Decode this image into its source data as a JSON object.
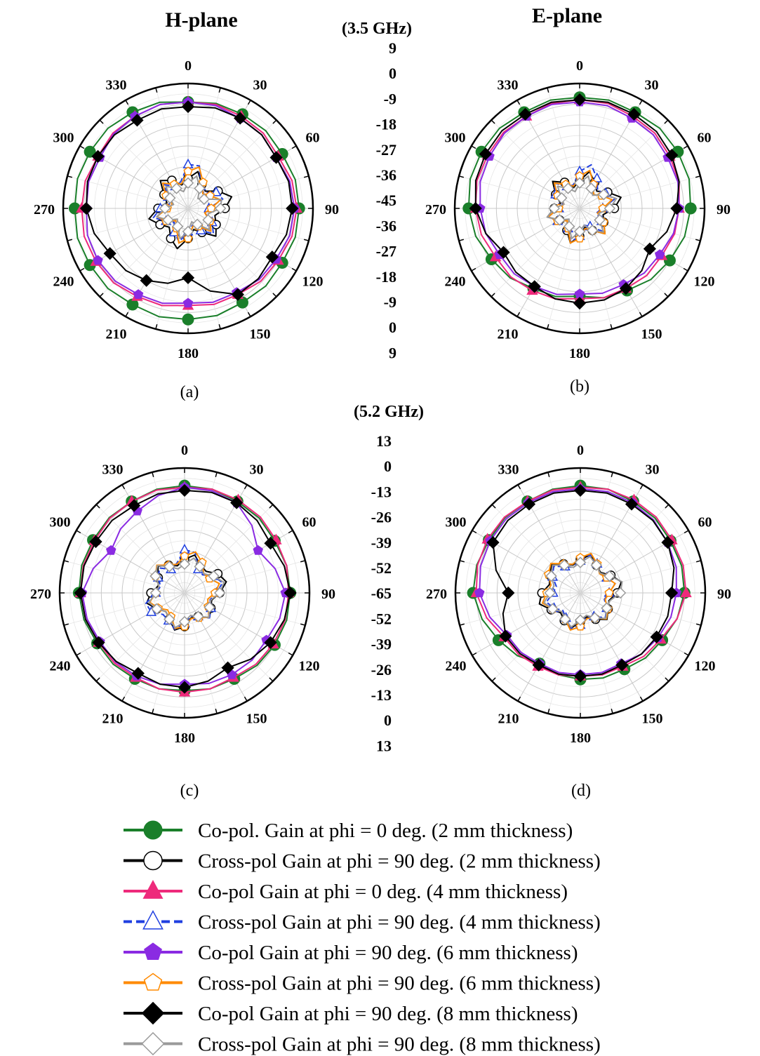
{
  "figure": {
    "header_left": "H-plane",
    "header_right": "E-plane",
    "freq_top": "(3.5 GHz)",
    "freq_bottom": "(5.2 GHz)"
  },
  "scales": {
    "top": [
      "9",
      "0",
      "-9",
      "-18",
      "-27",
      "-36",
      "-45",
      "-36",
      "-27",
      "-18",
      "-9",
      "0",
      "9"
    ],
    "bottom": [
      "13",
      "0",
      "-13",
      "-26",
      "-39",
      "-52",
      "-65",
      "-52",
      "-39",
      "-26",
      "-13",
      "0",
      "13"
    ]
  },
  "angle_labels": [
    "0",
    "30",
    "60",
    "90",
    "120",
    "150",
    "180",
    "210",
    "240",
    "270",
    "300",
    "330"
  ],
  "legend": [
    {
      "label": "Co-pol. Gain at phi = 0 deg. (2 mm thickness)",
      "color": "#1a7f2a",
      "marker": "circle-filled",
      "dash": false
    },
    {
      "label": "Cross-pol Gain at phi = 90 deg. (2 mm thickness)",
      "color": "#000000",
      "marker": "circle-open",
      "dash": false
    },
    {
      "label": "Co-pol Gain at phi = 0 deg. (4 mm thickness)",
      "color": "#ee2a7b",
      "marker": "triangle-filled",
      "dash": false
    },
    {
      "label": "Cross-pol Gain at phi = 90 deg. (4 mm thickness)",
      "color": "#1f3fe0",
      "marker": "triangle-open",
      "dash": true
    },
    {
      "label": "Co-pol Gain at phi = 90 deg. (6 mm thickness)",
      "color": "#8a2be2",
      "marker": "pentagon-filled",
      "dash": false
    },
    {
      "label": "Cross-pol Gain at phi = 90 deg. (6 mm thickness)",
      "color": "#ff8a00",
      "marker": "pentagon-open",
      "dash": false
    },
    {
      "label": "Co-pol Gain at phi = 90 deg. (8 mm thickness)",
      "color": "#000000",
      "marker": "diamond-filled",
      "dash": false
    },
    {
      "label": "Cross-pol Gain at phi = 90 deg. (8 mm thickness)",
      "color": "#9a9a9a",
      "marker": "diamond-open",
      "dash": false
    }
  ],
  "chart_data": [
    {
      "type": "polar",
      "caption": "(a)",
      "r_range": [
        -45,
        9
      ],
      "r_ticks": [
        9,
        0,
        -9,
        -18,
        -27,
        -36,
        -45
      ],
      "theta_deg": [
        0,
        30,
        60,
        90,
        120,
        150,
        180,
        210,
        240,
        270,
        300,
        330
      ],
      "series": [
        {
          "name": "Co-pol. Gain at phi = 0 deg. (2 mm thickness)",
          "values": [
            1,
            2,
            2,
            3,
            2,
            2,
            3,
            3,
            4,
            4,
            4,
            3
          ]
        },
        {
          "name": "Co-pol Gain at phi = 0 deg. (4 mm thickness)",
          "values": [
            1,
            1,
            0,
            2,
            0,
            -2,
            -3,
            -1,
            1,
            1,
            0,
            1
          ]
        },
        {
          "name": "Co-pol Gain at phi = 90 deg. (6 mm thickness)",
          "values": [
            1,
            0,
            -1,
            1,
            -1,
            -3,
            -4,
            -2,
            0,
            -1,
            -1,
            1
          ]
        },
        {
          "name": "Co-pol Gain at phi = 90 deg. (8 mm thickness)",
          "values": [
            -1,
            0,
            -1,
            0,
            -3,
            -2,
            -15,
            -9,
            -6,
            -1,
            0,
            -1
          ]
        },
        {
          "name": "Cross-pol Gain at phi = 90 deg. (2 mm thickness)",
          "values": [
            -32,
            -33,
            -30,
            -29,
            -31,
            -33,
            -32,
            -30,
            -31,
            -32,
            -33,
            -31
          ]
        },
        {
          "name": "Cross-pol Gain at phi = 90 deg. (4 mm thickness)",
          "values": [
            -26,
            -34,
            -31,
            -36,
            -33,
            -34,
            -35,
            -33,
            -34,
            -33,
            -35,
            -34
          ]
        },
        {
          "name": "Cross-pol Gain at phi = 90 deg. (6 mm thickness)",
          "values": [
            -29,
            -32,
            -34,
            -35,
            -34,
            -36,
            -32,
            -35,
            -34,
            -36,
            -34,
            -33
          ]
        },
        {
          "name": "Cross-pol Gain at phi = 90 deg. (8 mm thickness)",
          "values": [
            -34,
            -35,
            -37,
            -31,
            -35,
            -37,
            -35,
            -36,
            -35,
            -35,
            -36,
            -35
          ]
        }
      ]
    },
    {
      "type": "polar",
      "caption": "(b)",
      "r_range": [
        -45,
        9
      ],
      "r_ticks": [
        9,
        0,
        -9,
        -18,
        -27,
        -36,
        -45
      ],
      "theta_deg": [
        0,
        30,
        60,
        90,
        120,
        150,
        180,
        210,
        240,
        270,
        300,
        330
      ],
      "series": [
        {
          "name": "Co-pol. Gain at phi = 0 deg. (2 mm thickness)",
          "values": [
            3,
            3,
            4,
            3,
            0,
            -4,
            -7,
            -5,
            -1,
            3,
            4,
            3
          ]
        },
        {
          "name": "Co-pol Gain at phi = 0 deg. (4 mm thickness)",
          "values": [
            2,
            1,
            0,
            -2,
            -4,
            -5,
            -6,
            -4,
            -3,
            0,
            1,
            1
          ]
        },
        {
          "name": "Co-pol Gain at phi = 90 deg. (6 mm thickness)",
          "values": [
            1,
            0,
            -1,
            -2,
            -5,
            -7,
            -8,
            -6,
            -5,
            -2,
            0,
            1
          ]
        },
        {
          "name": "Co-pol Gain at phi = 90 deg. (8 mm thickness)",
          "values": [
            2,
            2,
            1,
            -3,
            -10,
            -5,
            -4,
            -6,
            -7,
            0,
            2,
            2
          ]
        },
        {
          "name": "Cross-pol Gain at phi = 90 deg. (2 mm thickness)",
          "values": [
            -33,
            -32,
            -31,
            -30,
            -33,
            -34,
            -33,
            -34,
            -35,
            -34,
            -33,
            -32
          ]
        },
        {
          "name": "Cross-pol Gain at phi = 90 deg. (4 mm thickness)",
          "values": [
            -29,
            -30,
            -32,
            -35,
            -34,
            -36,
            -33,
            -35,
            -34,
            -36,
            -33,
            -34
          ]
        },
        {
          "name": "Cross-pol Gain at phi = 90 deg. (6 mm thickness)",
          "values": [
            -31,
            -33,
            -34,
            -35,
            -33,
            -34,
            -32,
            -35,
            -34,
            -36,
            -34,
            -33
          ]
        },
        {
          "name": "Cross-pol Gain at phi = 90 deg. (8 mm thickness)",
          "values": [
            -34,
            -35,
            -33,
            -32,
            -35,
            -34,
            -35,
            -36,
            -35,
            -34,
            -36,
            -35
          ]
        }
      ]
    },
    {
      "type": "polar",
      "caption": "(c)",
      "r_range": [
        -65,
        13
      ],
      "r_ticks": [
        13,
        0,
        -13,
        -26,
        -39,
        -52,
        -65
      ],
      "theta_deg": [
        0,
        30,
        60,
        90,
        120,
        150,
        180,
        210,
        240,
        270,
        300,
        330
      ],
      "series": [
        {
          "name": "Co-pol. Gain at phi = 0 deg. (2 mm thickness)",
          "values": [
            2,
            1,
            0,
            1,
            0,
            -3,
            -4,
            -3,
            -2,
            1,
            1,
            1
          ]
        },
        {
          "name": "Co-pol Gain at phi = 0 deg. (4 mm thickness)",
          "values": [
            1,
            2,
            1,
            0,
            -1,
            -4,
            -3,
            -4,
            -3,
            0,
            0,
            1
          ]
        },
        {
          "name": "Co-pol Gain at phi = 90 deg. (6 mm thickness)",
          "values": [
            1,
            0,
            -12,
            -2,
            -6,
            -6,
            -8,
            -5,
            -4,
            -1,
            -12,
            -6
          ]
        },
        {
          "name": "Co-pol Gain at phi = 90 deg. (8 mm thickness)",
          "values": [
            -1,
            0,
            -3,
            1,
            -3,
            -11,
            -6,
            -7,
            -3,
            0,
            -1,
            -2
          ]
        },
        {
          "name": "Cross-pol Gain at phi = 90 deg. (2 mm thickness)",
          "values": [
            -44,
            -45,
            -41,
            -43,
            -46,
            -48,
            -44,
            -46,
            -45,
            -44,
            -46,
            -45
          ]
        },
        {
          "name": "Cross-pol Gain at phi = 90 deg. (4 mm thickness)",
          "values": [
            -38,
            -48,
            -44,
            -45,
            -46,
            -48,
            -46,
            -45,
            -41,
            -47,
            -46,
            -48
          ]
        },
        {
          "name": "Cross-pol Gain at phi = 90 deg. (6 mm thickness)",
          "values": [
            -42,
            -43,
            -47,
            -46,
            -48,
            -47,
            -44,
            -48,
            -46,
            -47,
            -44,
            -45
          ]
        },
        {
          "name": "Cross-pol Gain at phi = 90 deg. (8 mm thickness)",
          "values": [
            -47,
            -46,
            -44,
            -43,
            -47,
            -48,
            -47,
            -46,
            -45,
            -47,
            -44,
            -46
          ]
        }
      ]
    },
    {
      "type": "polar",
      "caption": "(d)",
      "r_range": [
        -65,
        13
      ],
      "r_ticks": [
        13,
        0,
        -13,
        -26,
        -39,
        -52,
        -65
      ],
      "theta_deg": [
        0,
        30,
        60,
        90,
        120,
        150,
        180,
        210,
        240,
        270,
        300,
        330
      ],
      "series": [
        {
          "name": "Co-pol. Gain at phi = 0 deg. (2 mm thickness)",
          "values": [
            2,
            1,
            0,
            0,
            -6,
            -10,
            -11,
            -14,
            -6,
            2,
            1,
            1
          ]
        },
        {
          "name": "Co-pol Gain at phi = 0 deg. (4 mm thickness)",
          "values": [
            1,
            2,
            1,
            1,
            -7,
            -12,
            -13,
            -12,
            -10,
            0,
            2,
            1
          ]
        },
        {
          "name": "Co-pol Gain at phi = 90 deg. (6 mm thickness)",
          "values": [
            0,
            0,
            -2,
            -5,
            -9,
            -14,
            -14,
            -14,
            -12,
            -2,
            0,
            0
          ]
        },
        {
          "name": "Co-pol Gain at phi = 90 deg. (8 mm thickness)",
          "values": [
            -1,
            -1,
            -2,
            -8,
            -10,
            -13,
            -13,
            -13,
            -11,
            -20,
            -2,
            -1
          ]
        },
        {
          "name": "Cross-pol Gain at phi = 90 deg. (2 mm thickness)",
          "values": [
            -44,
            -45,
            -43,
            -42,
            -45,
            -46,
            -47,
            -45,
            -44,
            -41,
            -43,
            -44
          ]
        },
        {
          "name": "Cross-pol Gain at phi = 90 deg. (4 mm thickness)",
          "values": [
            -45,
            -44,
            -46,
            -47,
            -46,
            -48,
            -45,
            -47,
            -46,
            -48,
            -45,
            -46
          ]
        },
        {
          "name": "Cross-pol Gain at phi = 90 deg. (6 mm thickness)",
          "values": [
            -43,
            -44,
            -46,
            -47,
            -45,
            -47,
            -44,
            -46,
            -45,
            -44,
            -42,
            -44
          ]
        },
        {
          "name": "Cross-pol Gain at phi = 90 deg. (8 mm thickness)",
          "values": [
            -46,
            -45,
            -44,
            -40,
            -46,
            -47,
            -48,
            -46,
            -45,
            -46,
            -44,
            -45
          ]
        }
      ]
    }
  ]
}
